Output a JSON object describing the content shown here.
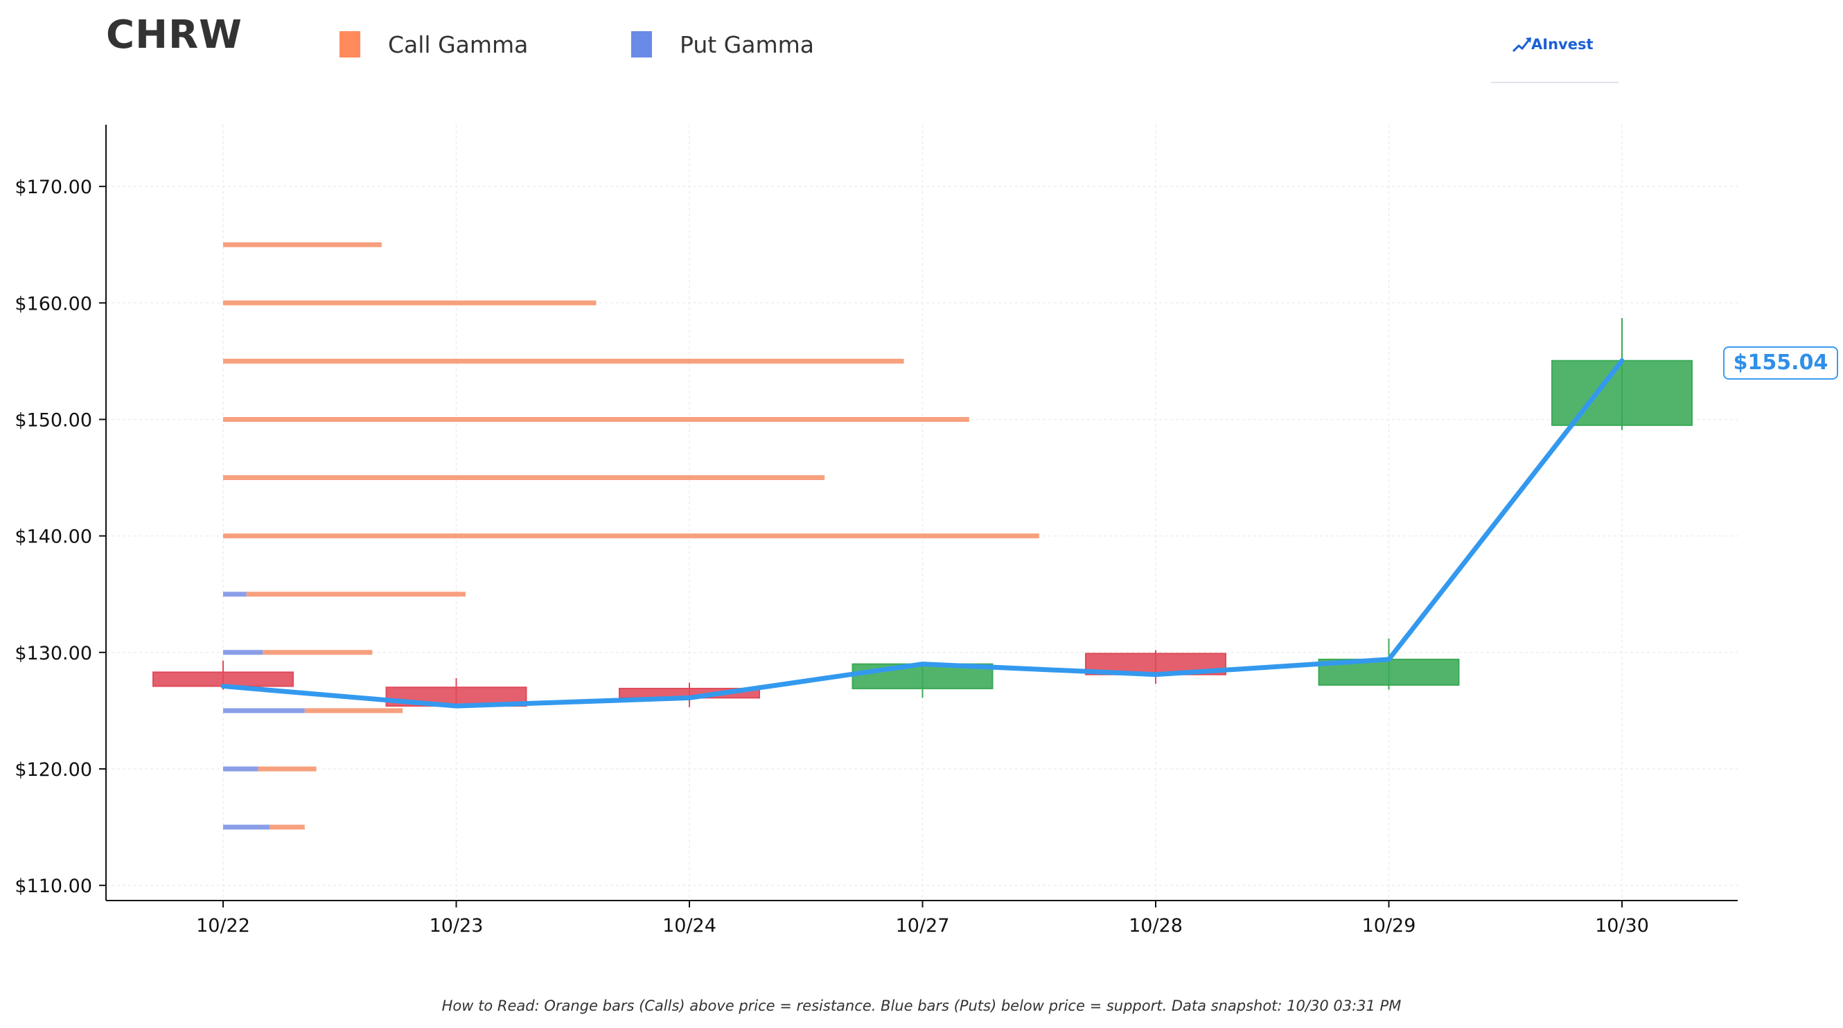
{
  "header": {
    "ticker": "CHRW",
    "brand": "AInvest"
  },
  "legend": [
    {
      "label": "Call Gamma",
      "color": "#ff8a5c"
    },
    {
      "label": "Put Gamma",
      "color": "#6a8ae8"
    }
  ],
  "price_badge": "$155.04",
  "footnote": "How to Read: Orange bars (Calls) above price = resistance. Blue bars (Puts) below price = support. Data snapshot: 10/30 03:31 PM",
  "chart_data": {
    "type": "candlestick",
    "categories": [
      "10/22",
      "10/23",
      "10/24",
      "10/27",
      "10/28",
      "10/29",
      "10/30"
    ],
    "ylim": [
      108.7,
      175.3
    ],
    "yticks": [
      110,
      120,
      130,
      140,
      150,
      160,
      170
    ],
    "ytick_labels": [
      "$110.00",
      "$120.00",
      "$130.00",
      "$140.00",
      "$150.00",
      "$160.00",
      "$170.00"
    ],
    "grid": true,
    "colors": {
      "up": "#3aaa55",
      "down": "#e04a5a",
      "line": "#3399ee",
      "call": "#f7a07e",
      "put": "#8a9ee8"
    },
    "candles": [
      {
        "date": "10/22",
        "open": 128.3,
        "high": 129.3,
        "low": 126.8,
        "close": 127.1
      },
      {
        "date": "10/23",
        "open": 127.0,
        "high": 127.8,
        "low": 125.2,
        "close": 125.4
      },
      {
        "date": "10/24",
        "open": 126.9,
        "high": 127.4,
        "low": 125.3,
        "close": 126.1
      },
      {
        "date": "10/27",
        "open": 126.9,
        "high": 129.1,
        "low": 126.1,
        "close": 129.0
      },
      {
        "date": "10/28",
        "open": 129.9,
        "high": 130.2,
        "low": 127.3,
        "close": 128.1
      },
      {
        "date": "10/29",
        "open": 127.2,
        "high": 131.2,
        "low": 126.8,
        "close": 129.4
      },
      {
        "date": "10/30",
        "open": 149.5,
        "high": 158.7,
        "low": 149.1,
        "close": 155.04
      }
    ],
    "close_line": [
      127.1,
      125.4,
      126.1,
      129.0,
      128.1,
      129.4,
      155.04
    ],
    "gamma_x_range": [
      0,
      6
    ],
    "gamma_levels": [
      {
        "strike": 165,
        "put_end": 0,
        "call_end": 0.68
      },
      {
        "strike": 160,
        "put_end": 0,
        "call_end": 1.6
      },
      {
        "strike": 155,
        "put_end": 0,
        "call_end": 2.92
      },
      {
        "strike": 150,
        "put_end": 0,
        "call_end": 3.2
      },
      {
        "strike": 145,
        "put_end": 0,
        "call_end": 2.58
      },
      {
        "strike": 140,
        "put_end": 0,
        "call_end": 3.5
      },
      {
        "strike": 135,
        "put_end": 0.1,
        "call_end": 1.04
      },
      {
        "strike": 130,
        "put_end": 0.17,
        "call_end": 0.64
      },
      {
        "strike": 125,
        "put_end": 0.35,
        "call_end": 0.77
      },
      {
        "strike": 120,
        "put_end": 0.15,
        "call_end": 0.4
      },
      {
        "strike": 115,
        "put_end": 0.2,
        "call_end": 0.35
      }
    ]
  }
}
